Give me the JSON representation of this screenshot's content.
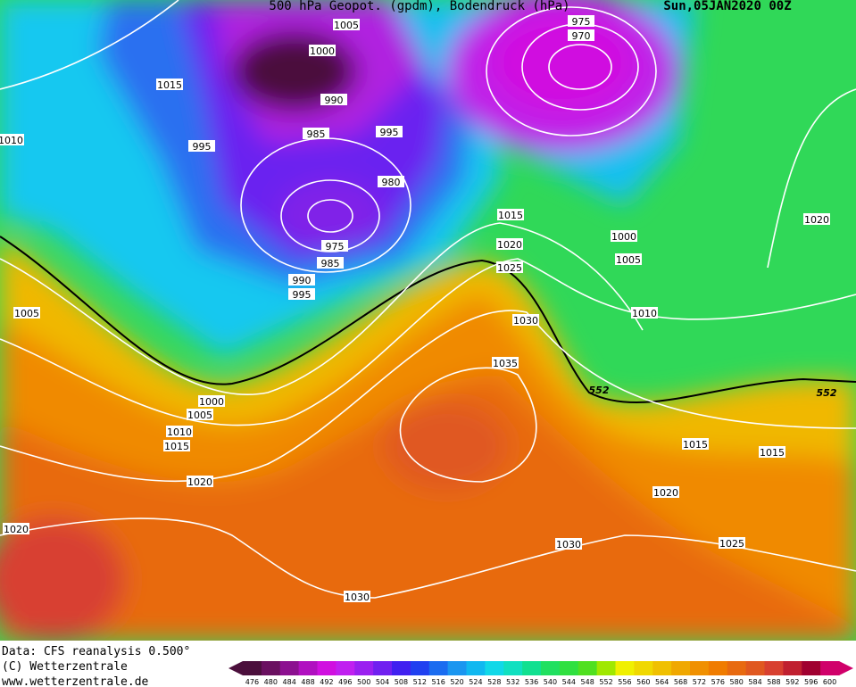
{
  "header": {
    "title": "500 hPa Geopot. (gpdm), Bodendruck (hPa)",
    "date": "Sun,05JAN2020 00Z"
  },
  "isobar_labels": [
    "1005",
    "1000",
    "975",
    "970",
    "1015",
    "1010",
    "990",
    "985",
    "995",
    "995",
    "980",
    "975",
    "985",
    "990",
    "995",
    "1015",
    "1020",
    "1025",
    "1000",
    "1005",
    "1010",
    "1020",
    "1005",
    "1030",
    "1035",
    "1000",
    "1005",
    "1010",
    "1015",
    "1020",
    "1020",
    "1015",
    "1015",
    "1020",
    "1025",
    "1030",
    "1030"
  ],
  "contour_labels": [
    "552",
    "552"
  ],
  "legend": {
    "values": [
      476,
      480,
      484,
      488,
      492,
      496,
      500,
      504,
      508,
      512,
      516,
      520,
      524,
      528,
      532,
      536,
      540,
      544,
      548,
      552,
      556,
      560,
      564,
      568,
      572,
      576,
      580,
      584,
      588,
      592,
      596,
      600
    ],
    "colors": [
      "#4b0f3c",
      "#6a1060",
      "#8c1090",
      "#b010c0",
      "#d010e0",
      "#c020f0",
      "#9a20f0",
      "#7020f0",
      "#4020f0",
      "#2040f0",
      "#1a6cf0",
      "#1a96f0",
      "#10b8f0",
      "#10d8e8",
      "#10e0c0",
      "#10e090",
      "#20e060",
      "#30e040",
      "#50e020",
      "#a0e800",
      "#f0f000",
      "#f0d800",
      "#f0c000",
      "#f0a800",
      "#f09000",
      "#f07c00",
      "#e86a10",
      "#e05820",
      "#d84030",
      "#c02030",
      "#a00030",
      "#d0006a"
    ]
  },
  "footer": {
    "source": "Data: CFS reanalysis 0.500°",
    "copyright": "(C) Wetterzentrale",
    "url": "www.wetterzentrale.de"
  }
}
